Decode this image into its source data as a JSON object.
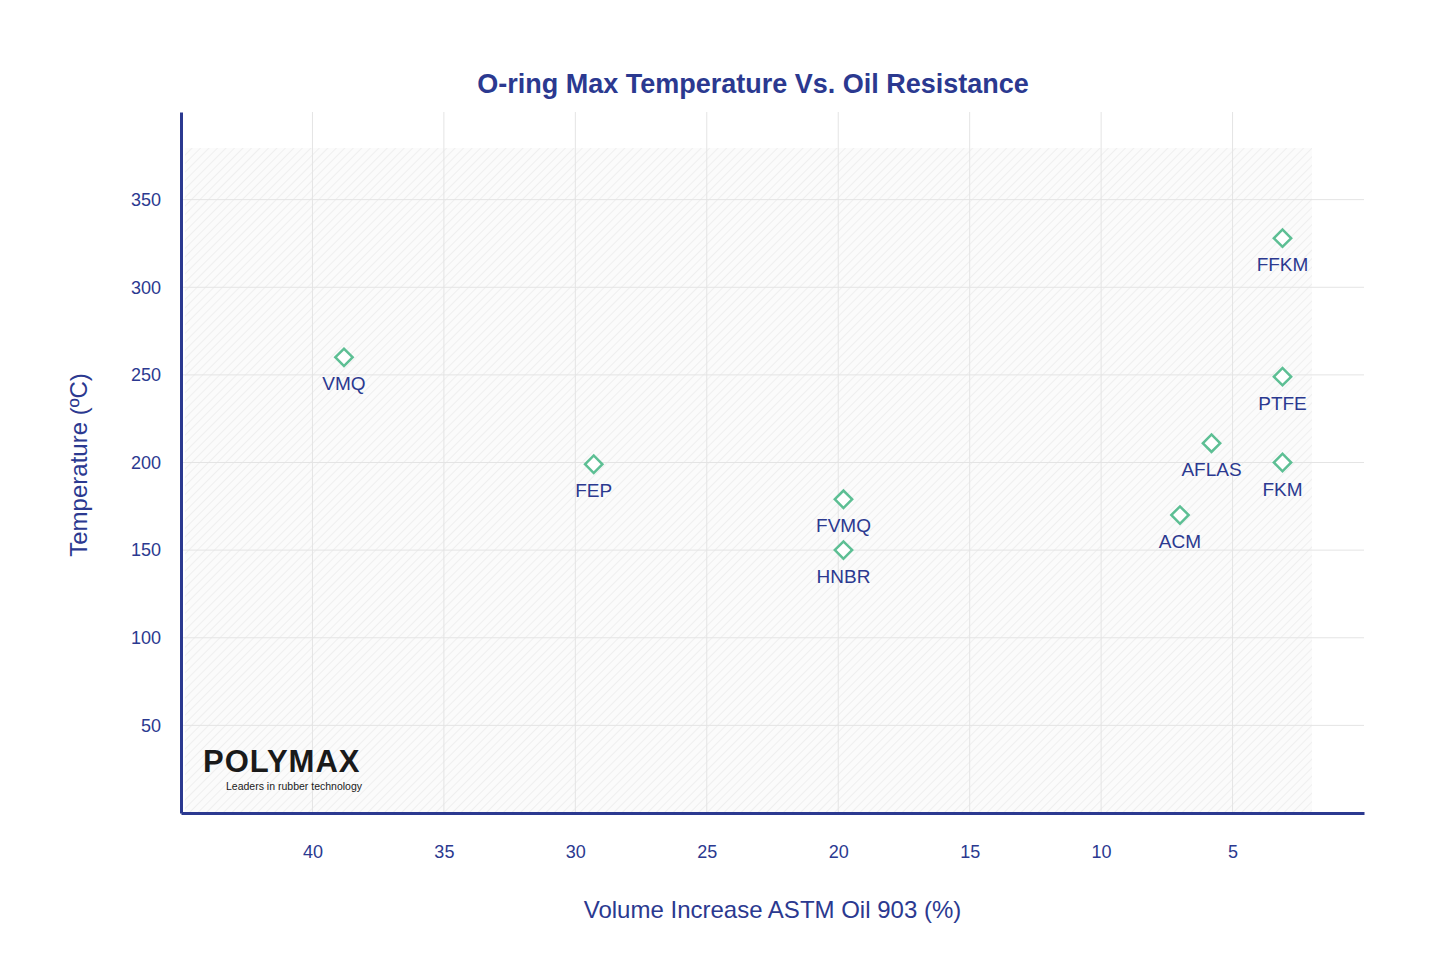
{
  "chart_data": {
    "type": "scatter",
    "title": "O-ring Max Temperature Vs. Oil Resistance",
    "x_label": "Volume Increase ASTM Oil 903 (%)",
    "y_label": "Temperature (ºC)",
    "labels": [
      "VMQ",
      "FEP",
      "FVMQ",
      "HNBR",
      "ACM",
      "AFLAS",
      "FFKM",
      "PTFE",
      "FKM"
    ],
    "x": [
      38.8,
      29.3,
      19.8,
      19.8,
      7.0,
      5.8,
      3.1,
      3.1,
      3.1
    ],
    "values": [
      260,
      199,
      179,
      150,
      170,
      211,
      328,
      249,
      200
    ],
    "color": "#5dbf94",
    "marker": "diamond",
    "xlim": [
      45,
      0
    ],
    "xticks": [
      40,
      35,
      30,
      25,
      20,
      15,
      10,
      5
    ],
    "ylim": [
      0,
      400
    ],
    "yticks": [
      50,
      100,
      150,
      200,
      250,
      300,
      350
    ],
    "grid": true,
    "annotations": [
      "POLYMAX",
      "Leaders in rubber technology"
    ]
  }
}
